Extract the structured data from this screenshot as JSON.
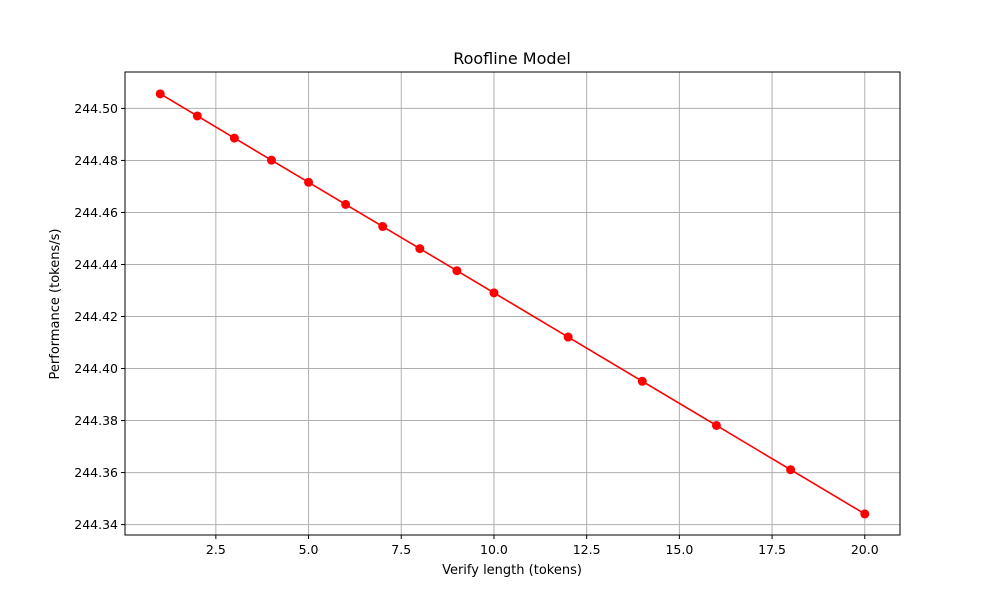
{
  "chart_data": {
    "type": "line",
    "title": "Roofline Model",
    "xlabel": "Verify length (tokens)",
    "ylabel": "Performance (tokens/s)",
    "xlim": [
      0.05,
      20.95
    ],
    "ylim": [
      244.336,
      244.514
    ],
    "xticks": [
      2.5,
      5.0,
      7.5,
      10.0,
      12.5,
      15.0,
      17.5,
      20.0
    ],
    "xtick_labels": [
      "2.5",
      "5.0",
      "7.5",
      "10.0",
      "12.5",
      "15.0",
      "17.5",
      "20.0"
    ],
    "yticks": [
      244.34,
      244.36,
      244.38,
      244.4,
      244.42,
      244.44,
      244.46,
      244.48,
      244.5
    ],
    "ytick_labels": [
      "244.34",
      "244.36",
      "244.38",
      "244.40",
      "244.42",
      "244.44",
      "244.46",
      "244.48",
      "244.50"
    ],
    "grid": true,
    "series": [
      {
        "color": "#ff0000",
        "marker": "circle",
        "x": [
          1,
          2,
          3,
          4,
          5,
          6,
          7,
          8,
          9,
          10,
          12,
          14,
          16,
          18,
          20
        ],
        "y": [
          244.5056,
          244.4971,
          244.4886,
          244.4801,
          244.4716,
          244.4631,
          244.4546,
          244.4461,
          244.4376,
          244.4291,
          244.4121,
          244.3951,
          244.3781,
          244.3611,
          244.3441
        ]
      }
    ]
  }
}
